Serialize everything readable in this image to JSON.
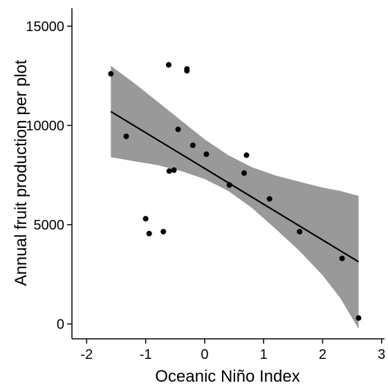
{
  "chart_data": {
    "type": "scatter",
    "title": "",
    "xlabel": "Oceanic Niño Index",
    "ylabel": "Annual fruit production per plot",
    "xlim": [
      -2.25,
      3.05
    ],
    "ylim": [
      -750,
      15900
    ],
    "x_ticks": [
      -2,
      -1,
      0,
      1,
      2,
      3
    ],
    "x_tick_labels": [
      "-2",
      "-1",
      "0",
      "1",
      "2",
      "3"
    ],
    "y_ticks": [
      0,
      5000,
      10000,
      15000
    ],
    "y_tick_labels": [
      "0",
      "5000",
      "10000",
      "15000"
    ],
    "grid": false,
    "legend": "none",
    "points": [
      {
        "x": -1.59,
        "y": 12600
      },
      {
        "x": -1.33,
        "y": 9450
      },
      {
        "x": -1.0,
        "y": 5300
      },
      {
        "x": -0.94,
        "y": 4550
      },
      {
        "x": -0.7,
        "y": 4650
      },
      {
        "x": -0.61,
        "y": 13050
      },
      {
        "x": -0.6,
        "y": 7700
      },
      {
        "x": -0.52,
        "y": 7750
      },
      {
        "x": -0.45,
        "y": 9800
      },
      {
        "x": -0.3,
        "y": 12850
      },
      {
        "x": -0.3,
        "y": 12750
      },
      {
        "x": -0.2,
        "y": 9000
      },
      {
        "x": 0.03,
        "y": 8550
      },
      {
        "x": 0.42,
        "y": 7000
      },
      {
        "x": 0.67,
        "y": 7600
      },
      {
        "x": 0.71,
        "y": 8500
      },
      {
        "x": 1.1,
        "y": 6300
      },
      {
        "x": 1.61,
        "y": 4650
      },
      {
        "x": 2.33,
        "y": 3300
      },
      {
        "x": 2.61,
        "y": 300
      }
    ],
    "fit_line": {
      "x": [
        -1.59,
        2.61
      ],
      "y": [
        10700,
        3130
      ]
    },
    "confidence_band": {
      "x": [
        -1.59,
        -1.2,
        -0.8,
        -0.4,
        0.0,
        0.4,
        0.8,
        1.2,
        1.6,
        2.0,
        2.3,
        2.61
      ],
      "upper": [
        13000,
        12150,
        11200,
        10250,
        9300,
        8500,
        7900,
        7480,
        7170,
        6870,
        6700,
        6450
      ],
      "lower": [
        8400,
        8200,
        8000,
        7700,
        7300,
        6700,
        5850,
        4800,
        3700,
        2450,
        1300,
        -250
      ]
    },
    "colors": {
      "points": "#000000",
      "line": "#000000",
      "band": "#999999"
    }
  }
}
